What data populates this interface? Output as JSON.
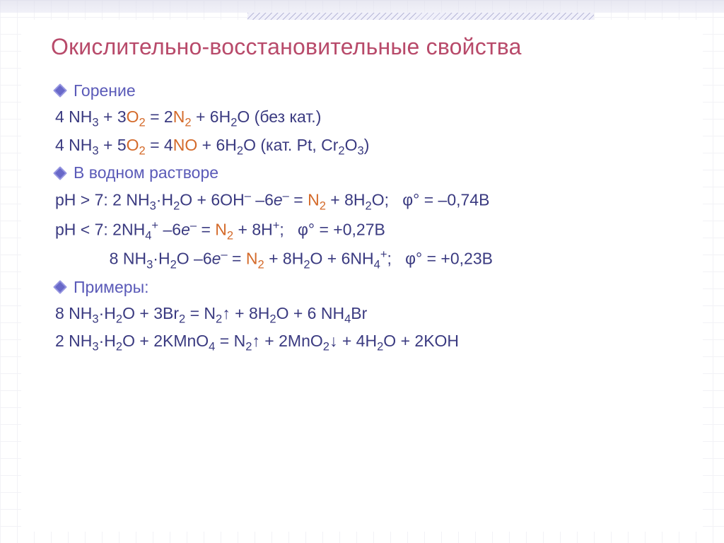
{
  "colors": {
    "title": "#b84a6a",
    "bullet_fill": "#6868c8",
    "bullet_border": "#9494e0",
    "bullet_text": "#5a5ab8",
    "body_text": "#3a3a80",
    "highlight_o2": "#d46a2a",
    "highlight_n2": "#d46a2a",
    "highlight_no": "#d46a2a",
    "grid": "#e8e8f0"
  },
  "title": "Окислительно-восстановительные свойства",
  "sections": [
    {
      "heading": "Горение",
      "lines": [
        [
          {
            "t": "4 NH"
          },
          {
            "sub": "3"
          },
          {
            "t": " + 3"
          },
          {
            "t": "O",
            "hl": true
          },
          {
            "sub": "2",
            "hl": true
          },
          {
            "t": " = 2"
          },
          {
            "t": "N",
            "hl": true
          },
          {
            "sub": "2",
            "hl": true
          },
          {
            "t": " + 6H"
          },
          {
            "sub": "2"
          },
          {
            "t": "O (без кат.)"
          }
        ],
        [
          {
            "t": "4 NH"
          },
          {
            "sub": "3"
          },
          {
            "t": " + 5"
          },
          {
            "t": "O",
            "hl": true
          },
          {
            "sub": "2",
            "hl": true
          },
          {
            "t": " = 4"
          },
          {
            "t": "NO",
            "hl": true
          },
          {
            "t": " + 6H"
          },
          {
            "sub": "2"
          },
          {
            "t": "O (кат. Pt, Cr"
          },
          {
            "sub": "2"
          },
          {
            "t": "O"
          },
          {
            "sub": "3"
          },
          {
            "t": ")"
          }
        ]
      ]
    },
    {
      "heading": "В водном растворе",
      "lines": [
        [
          {
            "t": "pH > 7: 2 NH"
          },
          {
            "sub": "3"
          },
          {
            "t": "·H"
          },
          {
            "sub": "2"
          },
          {
            "t": "O + 6OH"
          },
          {
            "sup": "–"
          },
          {
            "t": " –6"
          },
          {
            "t": "e",
            "it": true
          },
          {
            "sup": "–"
          },
          {
            "t": " = "
          },
          {
            "t": "N",
            "hl": true
          },
          {
            "sub": "2",
            "hl": true
          },
          {
            "t": " + 8H"
          },
          {
            "sub": "2"
          },
          {
            "t": "O;   φ° = –0,74B"
          }
        ],
        [
          {
            "t": "pH < 7: 2NH"
          },
          {
            "sub": "4"
          },
          {
            "sup": "+"
          },
          {
            "t": " –6"
          },
          {
            "t": "e",
            "it": true
          },
          {
            "sup": "–"
          },
          {
            "t": " = "
          },
          {
            "t": "N",
            "hl": true
          },
          {
            "sub": "2",
            "hl": true
          },
          {
            "t": " + 8H"
          },
          {
            "sup": "+"
          },
          {
            "t": ";   φ° = +0,27B"
          }
        ],
        [
          {
            "t": "            8 NH"
          },
          {
            "sub": "3"
          },
          {
            "t": "·H"
          },
          {
            "sub": "2"
          },
          {
            "t": "O –6"
          },
          {
            "t": "e",
            "it": true
          },
          {
            "sup": "–"
          },
          {
            "t": " = "
          },
          {
            "t": "N",
            "hl": true
          },
          {
            "sub": "2",
            "hl": true
          },
          {
            "t": " + 8H"
          },
          {
            "sub": "2"
          },
          {
            "t": "O + 6NH"
          },
          {
            "sub": "4"
          },
          {
            "sup": "+"
          },
          {
            "t": ";   φ° = +0,23B"
          }
        ]
      ]
    },
    {
      "heading": "Примеры:",
      "lines": [
        [
          {
            "t": "8 NH"
          },
          {
            "sub": "3"
          },
          {
            "t": "·H"
          },
          {
            "sub": "2"
          },
          {
            "t": "O + 3Br"
          },
          {
            "sub": "2"
          },
          {
            "t": " = N"
          },
          {
            "sub": "2"
          },
          {
            "arrow": "up"
          },
          {
            "t": " + 8H"
          },
          {
            "sub": "2"
          },
          {
            "t": "O + 6 NH"
          },
          {
            "sub": "4"
          },
          {
            "t": "Br"
          }
        ],
        [
          {
            "t": "2 NH"
          },
          {
            "sub": "3"
          },
          {
            "t": "·H"
          },
          {
            "sub": "2"
          },
          {
            "t": "O + 2KMnO"
          },
          {
            "sub": "4"
          },
          {
            "t": " = N"
          },
          {
            "sub": "2"
          },
          {
            "arrow": "up"
          },
          {
            "t": " + 2MnO"
          },
          {
            "sub": "2"
          },
          {
            "arrow": "down"
          },
          {
            "t": " + 4H"
          },
          {
            "sub": "2"
          },
          {
            "t": "O + 2KOH"
          }
        ]
      ]
    }
  ]
}
